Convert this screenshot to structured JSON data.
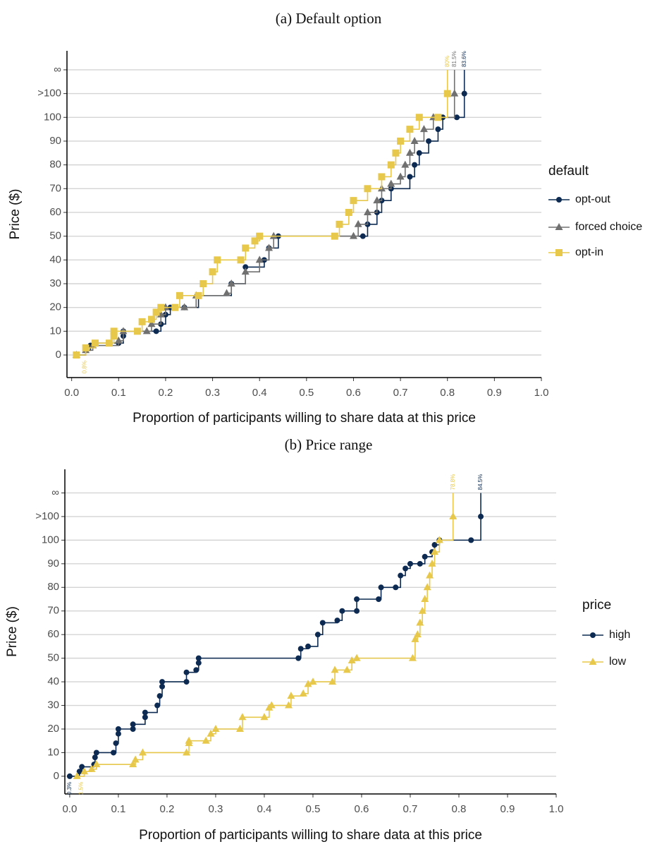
{
  "chart_data": [
    {
      "type": "step",
      "title": "(a) Default option",
      "x_label": "Proportion of participants willing to share data at this price",
      "y_label": "Price ($)",
      "legend_title": "default",
      "grid": true,
      "xlim": [
        -0.01,
        1
      ],
      "xticks": [
        {
          "value": 0,
          "label": "0.0"
        },
        0.1,
        0.2,
        0.3,
        0.4,
        0.5,
        0.6,
        0.7,
        0.8,
        0.9,
        {
          "value": 1,
          "label": "1.0"
        }
      ],
      "ylim": [
        -9.5,
        128
      ],
      "yticks": [
        0,
        10,
        20,
        30,
        40,
        50,
        60,
        70,
        80,
        90,
        100,
        {
          "value": 110,
          "label": ">100"
        },
        {
          "value": 120,
          "label": "∞"
        }
      ],
      "series": [
        {
          "name": "opt-out",
          "color": "#0d2b52",
          "marker": "circle",
          "end_label": "83.6%",
          "x": [
            0.01,
            0.03,
            0.04,
            0.05,
            0.1,
            0.11,
            0.11,
            0.18,
            0.19,
            0.2,
            0.21,
            0.24,
            0.27,
            0.34,
            0.37,
            0.41,
            0.42,
            0.44,
            0.62,
            0.63,
            0.65,
            0.66,
            0.68,
            0.72,
            0.73,
            0.74,
            0.76,
            0.78,
            0.79,
            0.82,
            0.836,
            0.836
          ],
          "values": [
            0,
            2,
            4,
            5,
            5,
            8,
            10,
            10,
            13,
            17,
            20,
            20,
            25,
            30,
            37,
            40,
            45,
            50,
            50,
            55,
            60,
            65,
            70,
            75,
            80,
            85,
            90,
            95,
            100,
            100,
            110,
            120
          ]
        },
        {
          "name": "forced choice",
          "color": "#707070",
          "marker": "triangle",
          "end_label": "81.5%",
          "x": [
            0.01,
            0.03,
            0.045,
            0.1,
            0.11,
            0.16,
            0.17,
            0.19,
            0.2,
            0.24,
            0.265,
            0.33,
            0.34,
            0.37,
            0.4,
            0.42,
            0.43,
            0.6,
            0.61,
            0.63,
            0.65,
            0.66,
            0.68,
            0.7,
            0.71,
            0.72,
            0.73,
            0.75,
            0.77,
            0.815,
            0.815
          ],
          "values": [
            0,
            2,
            4,
            6,
            10,
            10,
            13,
            17,
            20,
            20,
            25,
            26,
            30,
            35,
            40,
            45,
            50,
            50,
            55,
            60,
            65,
            70,
            72,
            75,
            80,
            85,
            90,
            95,
            100,
            110,
            120
          ]
        },
        {
          "name": "opt-in",
          "color": "#e8c84a",
          "marker": "square",
          "end_label": "80%",
          "start_label": "0.8%",
          "x": [
            0.01,
            0.03,
            0.05,
            0.08,
            0.09,
            0.09,
            0.14,
            0.15,
            0.17,
            0.18,
            0.19,
            0.22,
            0.23,
            0.27,
            0.28,
            0.3,
            0.31,
            0.36,
            0.37,
            0.39,
            0.4,
            0.56,
            0.57,
            0.59,
            0.6,
            0.63,
            0.66,
            0.68,
            0.69,
            0.7,
            0.72,
            0.74,
            0.78,
            0.8,
            0.8
          ],
          "values": [
            0,
            3,
            5,
            5,
            8,
            10,
            10,
            14,
            15,
            18,
            20,
            20,
            25,
            25,
            30,
            35,
            40,
            40,
            45,
            48,
            50,
            50,
            55,
            60,
            65,
            70,
            75,
            80,
            85,
            90,
            95,
            100,
            100,
            110,
            120
          ]
        }
      ]
    },
    {
      "type": "step",
      "title": "(b) Price range",
      "x_label": "Proportion of participants willing to share data at this price",
      "y_label": "Price ($)",
      "legend_title": "price",
      "grid": true,
      "xlim": [
        -0.01,
        1
      ],
      "xticks": [
        {
          "value": 0,
          "label": "0.0"
        },
        0.1,
        0.2,
        0.3,
        0.4,
        0.5,
        0.6,
        0.7,
        0.8,
        0.9,
        {
          "value": 1,
          "label": "1.0"
        }
      ],
      "ylim": [
        -7.5,
        130
      ],
      "yticks": [
        0,
        10,
        20,
        30,
        40,
        50,
        60,
        70,
        80,
        90,
        100,
        {
          "value": 110,
          "label": ">100"
        },
        {
          "value": 120,
          "label": "∞"
        }
      ],
      "series": [
        {
          "name": "high",
          "color": "#0d2b52",
          "marker": "circle",
          "end_label": "84.5%",
          "start_label": "0.3%",
          "x": [
            0,
            0.02,
            0.025,
            0.05,
            0.052,
            0.055,
            0.09,
            0.095,
            0.1,
            0.1,
            0.13,
            0.13,
            0.155,
            0.155,
            0.18,
            0.185,
            0.19,
            0.19,
            0.24,
            0.24,
            0.26,
            0.265,
            0.265,
            0.47,
            0.475,
            0.49,
            0.51,
            0.52,
            0.55,
            0.56,
            0.59,
            0.59,
            0.635,
            0.64,
            0.67,
            0.68,
            0.69,
            0.7,
            0.72,
            0.73,
            0.745,
            0.75,
            0.76,
            0.825,
            0.845,
            0.845
          ],
          "values": [
            0,
            2,
            4,
            5,
            8,
            10,
            10,
            14,
            18,
            20,
            20,
            22,
            25,
            27,
            30,
            34,
            38,
            40,
            40,
            44,
            45,
            48,
            50,
            50,
            54,
            55,
            60,
            65,
            66,
            70,
            70,
            75,
            75,
            80,
            80,
            85,
            88,
            90,
            90,
            93,
            95,
            98,
            100,
            100,
            110,
            120
          ]
        },
        {
          "name": "low",
          "color": "#e8c84a",
          "marker": "triangle",
          "end_label": "78.8%",
          "start_label": "1.5%",
          "x": [
            0.015,
            0.03,
            0.045,
            0.055,
            0.13,
            0.135,
            0.15,
            0.24,
            0.245,
            0.245,
            0.28,
            0.29,
            0.3,
            0.35,
            0.355,
            0.4,
            0.41,
            0.415,
            0.45,
            0.455,
            0.48,
            0.49,
            0.5,
            0.54,
            0.545,
            0.57,
            0.58,
            0.59,
            0.705,
            0.71,
            0.715,
            0.72,
            0.725,
            0.73,
            0.735,
            0.74,
            0.745,
            0.75,
            0.76,
            0.788,
            0.788
          ],
          "values": [
            0,
            2,
            3,
            5,
            5,
            7,
            10,
            10,
            14,
            15,
            15,
            18,
            20,
            20,
            25,
            25,
            29,
            30,
            30,
            34,
            35,
            39,
            40,
            40,
            45,
            45,
            49,
            50,
            50,
            58,
            60,
            65,
            70,
            75,
            80,
            85,
            90,
            95,
            100,
            110,
            120
          ]
        }
      ]
    }
  ]
}
